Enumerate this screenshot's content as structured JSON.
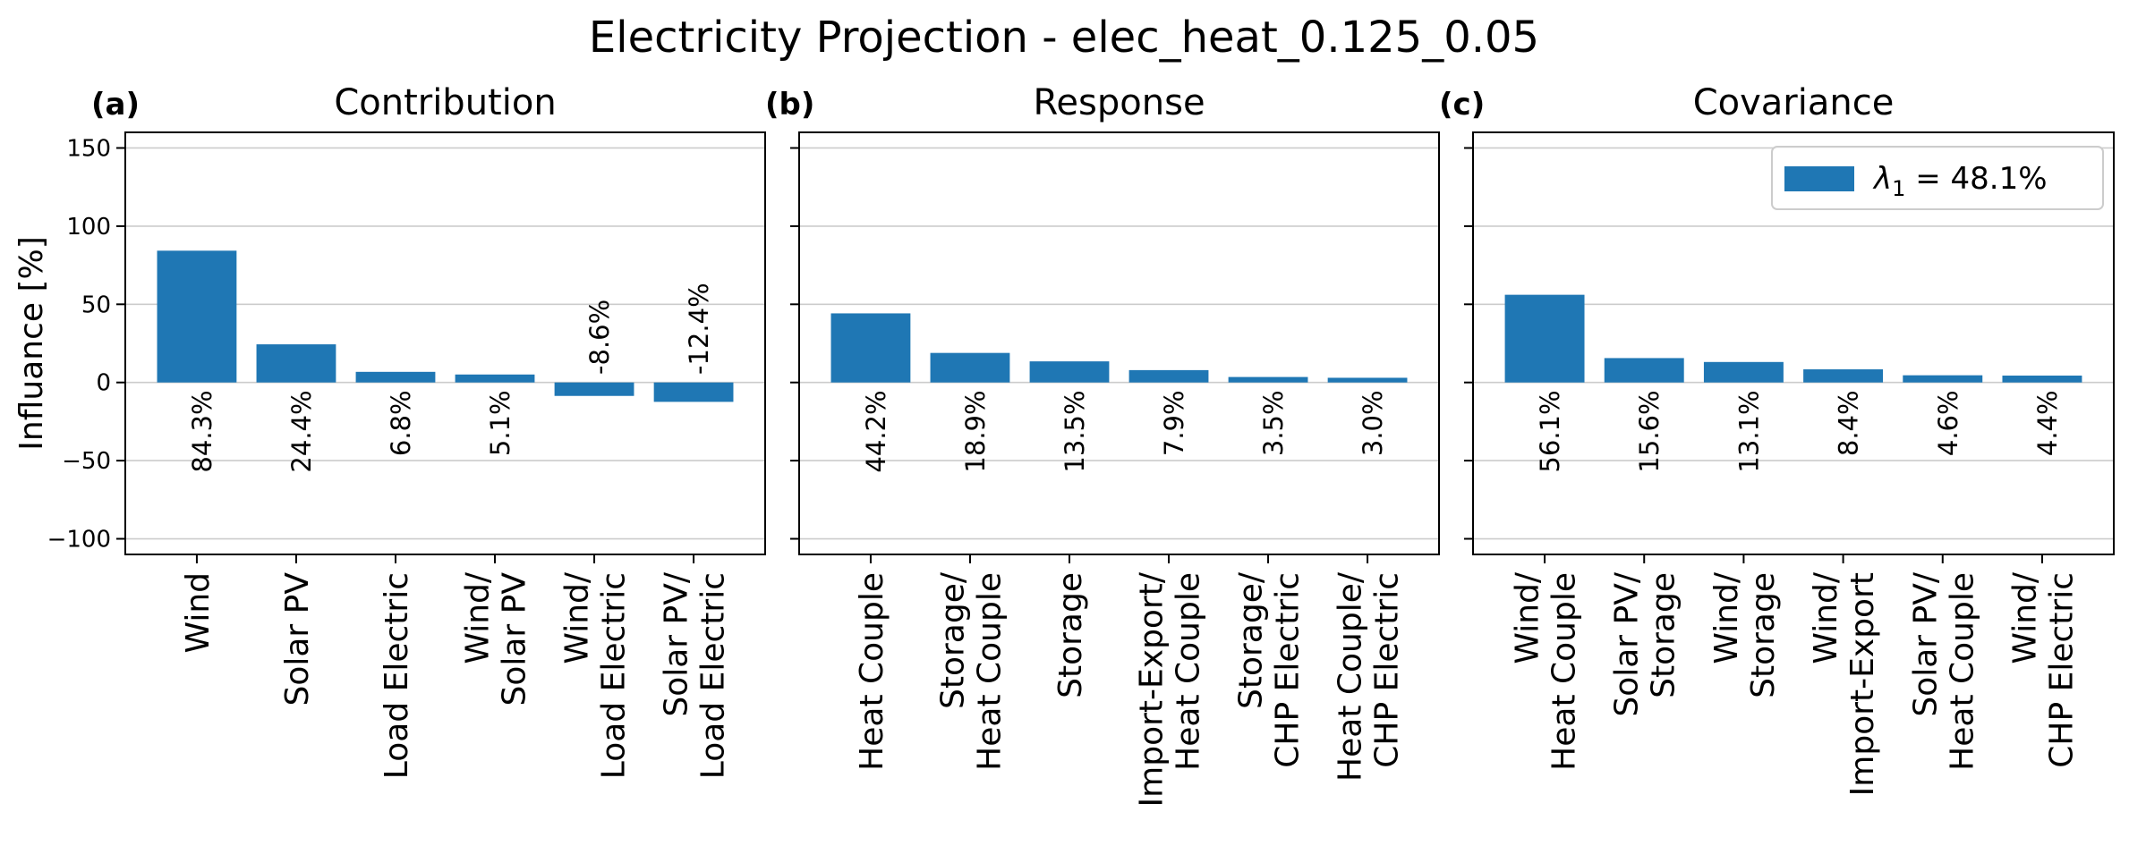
{
  "figure_title": "Electricity Projection - elec_heat_0.125_0.05",
  "ylabel": "Influance [%]",
  "ylim": [
    -110,
    160
  ],
  "yticks": [
    150,
    100,
    50,
    0,
    -50,
    -100
  ],
  "grid": true,
  "bar_color": "#1f77b4",
  "legend": {
    "symbol": "λ",
    "subscript": "1",
    "text": " = 48.1%",
    "placement": "top-right"
  },
  "chart_data": [
    {
      "type": "bar",
      "panel_label": "(a)",
      "title": "Contribution",
      "categories": [
        [
          "Wind"
        ],
        [
          "Solar PV"
        ],
        [
          "Load Electric"
        ],
        [
          "Wind/",
          "Solar PV"
        ],
        [
          "Wind/",
          "Load Electric"
        ],
        [
          "Solar PV/",
          "Load Electric"
        ]
      ],
      "values": [
        84.3,
        24.4,
        6.8,
        5.1,
        -8.6,
        -12.4
      ],
      "value_labels": [
        "84.3%",
        "24.4%",
        "6.8%",
        "5.1%",
        "-8.6%",
        "-12.4%"
      ],
      "ylim": [
        -110,
        160
      ]
    },
    {
      "type": "bar",
      "panel_label": "(b)",
      "title": "Response",
      "categories": [
        [
          "Heat Couple"
        ],
        [
          "Storage/",
          "Heat Couple"
        ],
        [
          "Storage"
        ],
        [
          "Import-Export/",
          "Heat Couple"
        ],
        [
          "Storage/",
          "CHP Electric"
        ],
        [
          "Heat Couple/",
          "CHP Electric"
        ]
      ],
      "values": [
        44.2,
        18.9,
        13.5,
        7.9,
        3.5,
        3.0
      ],
      "value_labels": [
        "44.2%",
        "18.9%",
        "13.5%",
        "7.9%",
        "3.5%",
        "3.0%"
      ],
      "ylim": [
        -110,
        160
      ]
    },
    {
      "type": "bar",
      "panel_label": "(c)",
      "title": "Covariance",
      "categories": [
        [
          "Wind/",
          "Heat Couple"
        ],
        [
          "Solar PV/",
          "Storage"
        ],
        [
          "Wind/",
          "Storage"
        ],
        [
          "Wind/",
          "Import-Export"
        ],
        [
          "Solar PV/",
          "Heat Couple"
        ],
        [
          "Wind/",
          "CHP Electric"
        ]
      ],
      "values": [
        56.1,
        15.6,
        13.1,
        8.4,
        4.6,
        4.4
      ],
      "value_labels": [
        "56.1%",
        "15.6%",
        "13.1%",
        "8.4%",
        "4.6%",
        "4.4%"
      ],
      "ylim": [
        -110,
        160
      ],
      "has_legend": true
    }
  ]
}
